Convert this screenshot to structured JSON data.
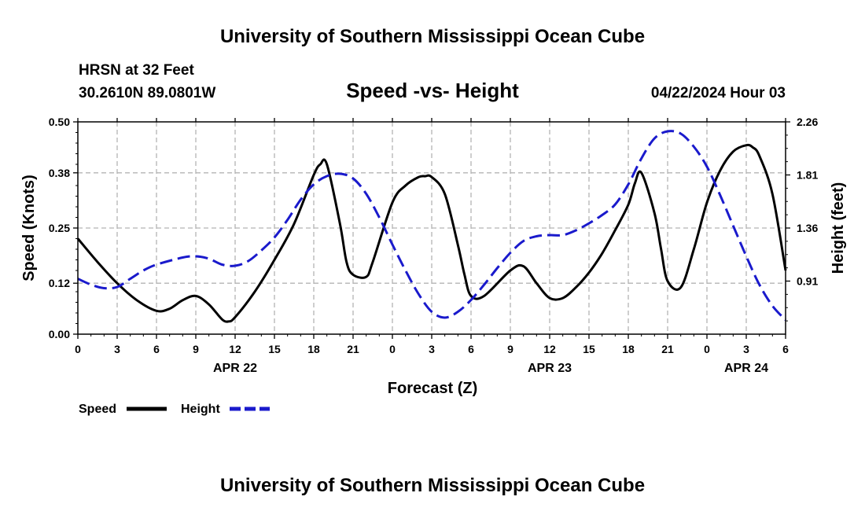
{
  "header": {
    "title": "University of Southern Mississippi Ocean Cube",
    "station": "HRSN at 32 Feet",
    "coords": "30.2610N  89.0801W",
    "chart_title": "Speed -vs- Height",
    "timestamp": "04/22/2024 Hour 03"
  },
  "footer": {
    "title": "University of Southern Mississippi Ocean Cube"
  },
  "legend": {
    "speed_label": "Speed",
    "height_label": "Height"
  },
  "colors": {
    "speed": "#000000",
    "height": "#1a1acc",
    "grid": "#b4b4b4"
  },
  "chart_data": {
    "type": "line",
    "title": "Speed -vs- Height",
    "xlabel": "Forecast (Z)",
    "ylabel_left": "Speed (Knots)",
    "ylabel_right": "Height (feet)",
    "x_ticks": [
      "0",
      "3",
      "6",
      "9",
      "12",
      "15",
      "18",
      "21",
      "0",
      "3",
      "6",
      "9",
      "12",
      "15",
      "18",
      "21",
      "0",
      "3",
      "6"
    ],
    "date_labels": [
      {
        "x": 12,
        "label": "APR 22"
      },
      {
        "x": 36,
        "label": "APR 23"
      },
      {
        "x": 51,
        "label": "APR 24"
      }
    ],
    "xlim": [
      0,
      54
    ],
    "ylim_left": [
      0,
      0.5
    ],
    "ylim_right": [
      0.46,
      2.26
    ],
    "left_ticks": [
      "0.00",
      "0.12",
      "0.25",
      "0.38",
      "0.50"
    ],
    "right_ticks": [
      "0.91",
      "1.36",
      "1.81",
      "2.26"
    ],
    "grid": true,
    "series": [
      {
        "name": "Speed",
        "axis": "left",
        "style": "solid",
        "x": [
          0,
          1.5,
          3,
          4.5,
          6,
          7,
          8,
          9,
          10,
          11,
          11.5,
          12,
          13.5,
          15,
          16.5,
          18,
          18.5,
          19,
          20,
          20.5,
          21,
          22,
          22.5,
          24,
          25,
          26,
          26.5,
          27,
          28,
          29,
          29.5,
          30,
          31,
          33,
          34,
          35,
          36,
          37,
          38,
          39,
          40,
          41,
          42,
          42.5,
          43,
          44,
          44.5,
          45,
          46,
          47,
          48,
          49,
          50,
          51,
          51.5,
          52,
          53,
          54
        ],
        "values": [
          0.225,
          0.17,
          0.12,
          0.08,
          0.055,
          0.06,
          0.08,
          0.09,
          0.07,
          0.035,
          0.03,
          0.04,
          0.1,
          0.175,
          0.26,
          0.375,
          0.4,
          0.4,
          0.26,
          0.17,
          0.14,
          0.135,
          0.17,
          0.31,
          0.35,
          0.37,
          0.372,
          0.37,
          0.33,
          0.21,
          0.14,
          0.09,
          0.09,
          0.15,
          0.16,
          0.12,
          0.085,
          0.085,
          0.11,
          0.145,
          0.19,
          0.245,
          0.305,
          0.355,
          0.38,
          0.285,
          0.2,
          0.125,
          0.11,
          0.2,
          0.31,
          0.385,
          0.43,
          0.445,
          0.44,
          0.42,
          0.33,
          0.15
        ]
      },
      {
        "name": "Height",
        "axis": "right",
        "style": "dashed",
        "x": [
          0,
          1,
          2,
          3,
          4,
          5,
          6,
          8,
          9,
          10,
          11,
          12,
          13,
          14,
          15,
          16,
          17,
          18,
          19,
          20,
          21,
          22,
          23,
          24,
          25,
          26,
          27,
          28,
          29,
          30,
          31,
          32,
          33,
          34,
          35,
          36,
          37,
          38,
          39,
          40,
          41,
          42,
          43,
          44,
          45,
          46,
          47,
          48,
          49,
          50,
          51,
          52,
          53,
          54
        ],
        "values": [
          0.93,
          0.88,
          0.85,
          0.86,
          0.93,
          1.0,
          1.05,
          1.11,
          1.12,
          1.1,
          1.05,
          1.04,
          1.08,
          1.17,
          1.28,
          1.43,
          1.6,
          1.73,
          1.8,
          1.82,
          1.78,
          1.65,
          1.45,
          1.22,
          1.0,
          0.8,
          0.65,
          0.6,
          0.65,
          0.75,
          0.88,
          1.02,
          1.15,
          1.25,
          1.29,
          1.3,
          1.3,
          1.34,
          1.4,
          1.47,
          1.56,
          1.73,
          1.95,
          2.12,
          2.18,
          2.16,
          2.05,
          1.88,
          1.64,
          1.38,
          1.12,
          0.88,
          0.7,
          0.58
        ]
      }
    ]
  }
}
